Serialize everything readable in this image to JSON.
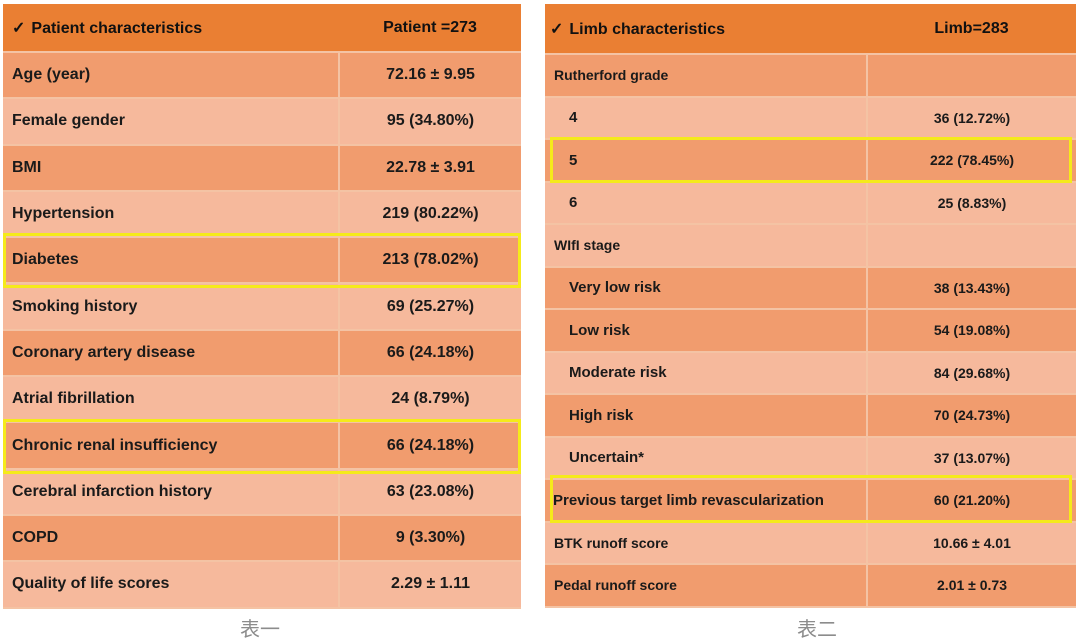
{
  "table1": {
    "header_label": "Patient characteristics",
    "header_value": "Patient =273",
    "check_glyph": "✓",
    "rows": [
      {
        "label": "Age (year)",
        "value": "72.16 ± 9.95"
      },
      {
        "label": "Female gender",
        "value": "95 (34.80%)"
      },
      {
        "label": "BMI",
        "value": "22.78 ± 3.91"
      },
      {
        "label": "Hypertension",
        "value": "219 (80.22%)"
      },
      {
        "label": "Diabetes",
        "value": "213 (78.02%)"
      },
      {
        "label": "Smoking history",
        "value": "69 (25.27%)"
      },
      {
        "label": "Coronary artery disease",
        "value": "66 (24.18%)"
      },
      {
        "label": "Atrial fibrillation",
        "value": "24 (8.79%)"
      },
      {
        "label": "Chronic renal insufficiency",
        "value": "66 (24.18%)"
      },
      {
        "label": "Cerebral infarction history",
        "value": "63 (23.08%)"
      },
      {
        "label": "COPD",
        "value": "9 (3.30%)"
      },
      {
        "label": "Quality of life scores",
        "value": "2.29 ± 1.11"
      }
    ],
    "caption": "表一"
  },
  "table2": {
    "header_label": "Limb characteristics",
    "header_value": "Limb=283",
    "check_glyph": "✓",
    "rows": [
      {
        "label": "Rutherford grade",
        "value": ""
      },
      {
        "label": "4",
        "value": "36 (12.72%)"
      },
      {
        "label": "5",
        "value": "222 (78.45%)"
      },
      {
        "label": "6",
        "value": "25 (8.83%)"
      },
      {
        "label": "WIfI stage",
        "value": ""
      },
      {
        "label": "Very low risk",
        "value": "38 (13.43%)"
      },
      {
        "label": "Low risk",
        "value": "54 (19.08%)"
      },
      {
        "label": "Moderate risk",
        "value": "84 (29.68%)"
      },
      {
        "label": "High risk",
        "value": "70 (24.73%)"
      },
      {
        "label": "Uncertain*",
        "value": "37 (13.07%)"
      },
      {
        "label": "Previous target limb revascularization",
        "value": "60 (21.20%)"
      },
      {
        "label": "BTK runoff score",
        "value": "10.66 ± 4.01"
      },
      {
        "label": "Pedal runoff score",
        "value": "2.01 ± 0.73"
      }
    ],
    "caption": "表二"
  },
  "colors": {
    "header": "#ea7f33",
    "row_dark": "#f19c6e",
    "row_light": "#f6b99c",
    "highlight": "#f5ea1a"
  }
}
